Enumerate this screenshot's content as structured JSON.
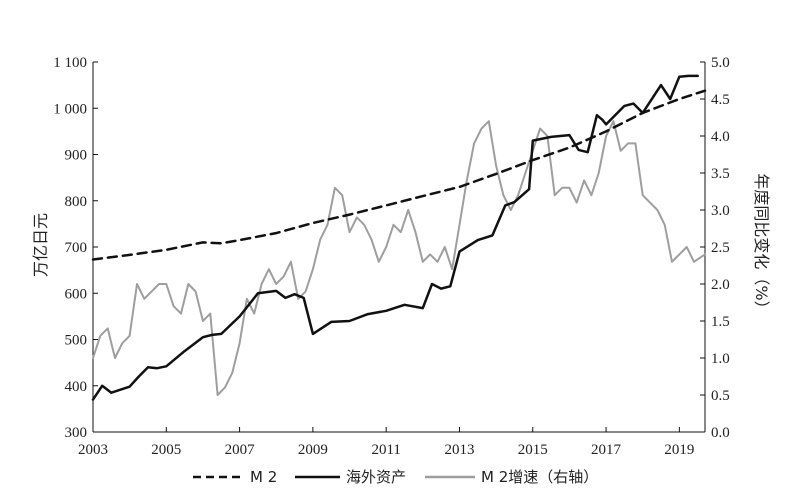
{
  "chart_data": {
    "type": "line",
    "xlabel": "",
    "ylabel_left": "万亿日元",
    "ylabel_right": "年度同比变化（%）",
    "xlim": [
      2003,
      2019.7
    ],
    "ylim_left": [
      300,
      1100
    ],
    "ylim_right": [
      0.0,
      5.0
    ],
    "x_ticks": [
      2003,
      2005,
      2007,
      2009,
      2011,
      2013,
      2015,
      2017,
      2019
    ],
    "x_tick_labels": [
      "2003",
      "2005",
      "2007",
      "2009",
      "2011",
      "2013",
      "2015",
      "2017",
      "2019"
    ],
    "y_left_ticks": [
      300,
      400,
      500,
      600,
      700,
      800,
      900,
      1000,
      1100
    ],
    "y_left_tick_labels": [
      "300",
      "400",
      "500",
      "600",
      "700",
      "800",
      "900",
      "1 000",
      "1 100"
    ],
    "y_right_ticks": [
      0.0,
      0.5,
      1.0,
      1.5,
      2.0,
      2.5,
      3.0,
      3.5,
      4.0,
      4.5,
      5.0
    ],
    "y_right_tick_labels": [
      "0.0",
      "0.5",
      "1.0",
      "1.5",
      "2.0",
      "2.5",
      "3.0",
      "3.5",
      "4.0",
      "4.5",
      "5.0"
    ],
    "grid": false,
    "legend_position": "bottom",
    "series": [
      {
        "name": "M 2",
        "axis": "left",
        "style": "dashed",
        "color": "#111111",
        "x": [
          2003.0,
          2004.0,
          2005.0,
          2006.0,
          2006.5,
          2007.0,
          2008.0,
          2009.0,
          2010.0,
          2011.0,
          2012.0,
          2013.0,
          2014.0,
          2015.0,
          2016.0,
          2017.0,
          2018.0,
          2019.0,
          2019.7
        ],
        "y": [
          673,
          683,
          694,
          710,
          708,
          715,
          730,
          752,
          770,
          790,
          810,
          830,
          858,
          888,
          915,
          950,
          990,
          1020,
          1038
        ]
      },
      {
        "name": "海外资产",
        "axis": "left",
        "style": "solid",
        "color": "#111111",
        "x": [
          2003.0,
          2003.25,
          2003.5,
          2004.0,
          2004.25,
          2004.5,
          2004.75,
          2005.0,
          2005.5,
          2006.0,
          2006.25,
          2006.5,
          2007.0,
          2007.5,
          2008.0,
          2008.25,
          2008.5,
          2008.75,
          2009.0,
          2009.5,
          2010.0,
          2010.5,
          2011.0,
          2011.5,
          2012.0,
          2012.25,
          2012.5,
          2012.75,
          2013.0,
          2013.5,
          2013.9,
          2014.25,
          2014.5,
          2014.9,
          2015.0,
          2015.5,
          2016.0,
          2016.25,
          2016.5,
          2016.75,
          2016.9,
          2017.0,
          2017.5,
          2017.75,
          2018.0,
          2018.5,
          2018.75,
          2019.0,
          2019.25,
          2019.5
        ],
        "y": [
          370,
          400,
          385,
          398,
          420,
          440,
          438,
          442,
          475,
          505,
          510,
          512,
          550,
          600,
          605,
          590,
          598,
          590,
          512,
          538,
          540,
          555,
          562,
          575,
          568,
          620,
          610,
          615,
          690,
          715,
          725,
          790,
          797,
          825,
          930,
          938,
          942,
          910,
          905,
          985,
          975,
          965,
          1005,
          1010,
          990,
          1050,
          1020,
          1068,
          1070,
          1070
        ]
      },
      {
        "name": "M 2增速（右轴）",
        "axis": "right",
        "style": "solid",
        "color": "#9e9e9e",
        "x": [
          2003.0,
          2003.2,
          2003.4,
          2003.6,
          2003.8,
          2004.0,
          2004.2,
          2004.4,
          2004.6,
          2004.8,
          2005.0,
          2005.2,
          2005.4,
          2005.6,
          2005.8,
          2006.0,
          2006.2,
          2006.4,
          2006.6,
          2006.8,
          2007.0,
          2007.2,
          2007.4,
          2007.6,
          2007.8,
          2008.0,
          2008.2,
          2008.4,
          2008.6,
          2008.8,
          2009.0,
          2009.2,
          2009.4,
          2009.6,
          2009.8,
          2010.0,
          2010.2,
          2010.4,
          2010.6,
          2010.8,
          2011.0,
          2011.2,
          2011.4,
          2011.6,
          2011.8,
          2012.0,
          2012.2,
          2012.4,
          2012.6,
          2012.8,
          2013.0,
          2013.2,
          2013.4,
          2013.6,
          2013.8,
          2014.0,
          2014.2,
          2014.4,
          2014.6,
          2014.8,
          2015.0,
          2015.2,
          2015.4,
          2015.6,
          2015.8,
          2016.0,
          2016.2,
          2016.4,
          2016.6,
          2016.8,
          2017.0,
          2017.2,
          2017.4,
          2017.6,
          2017.8,
          2018.0,
          2018.2,
          2018.4,
          2018.6,
          2018.8,
          2019.0,
          2019.2,
          2019.4,
          2019.7
        ],
        "y": [
          1.0,
          1.3,
          1.4,
          1.0,
          1.2,
          1.3,
          2.0,
          1.8,
          1.9,
          2.0,
          2.0,
          1.7,
          1.6,
          2.0,
          1.9,
          1.5,
          1.6,
          0.5,
          0.6,
          0.8,
          1.2,
          1.8,
          1.6,
          2.0,
          2.2,
          2.0,
          2.1,
          2.3,
          1.8,
          1.9,
          2.2,
          2.6,
          2.8,
          3.3,
          3.2,
          2.7,
          2.9,
          2.8,
          2.6,
          2.3,
          2.5,
          2.8,
          2.7,
          3.0,
          2.7,
          2.3,
          2.4,
          2.3,
          2.5,
          2.2,
          2.8,
          3.4,
          3.9,
          4.1,
          4.2,
          3.6,
          3.2,
          3.0,
          3.2,
          3.5,
          3.8,
          4.1,
          4.0,
          3.2,
          3.3,
          3.3,
          3.1,
          3.4,
          3.2,
          3.5,
          4.0,
          4.2,
          3.8,
          3.9,
          3.9,
          3.2,
          3.1,
          3.0,
          2.8,
          2.3,
          2.4,
          2.5,
          2.3,
          2.4
        ]
      }
    ]
  }
}
